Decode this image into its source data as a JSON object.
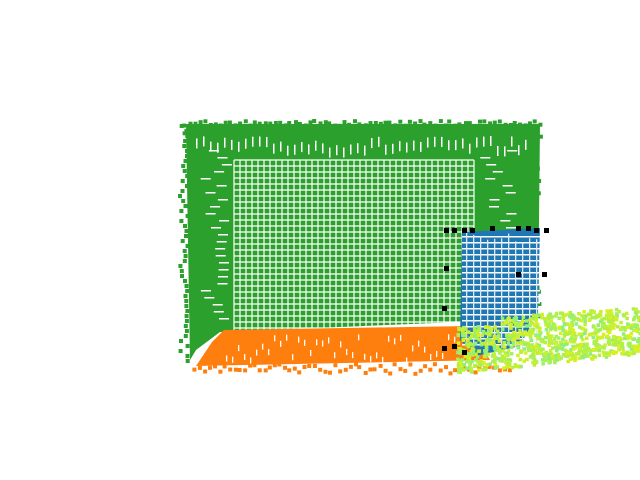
{
  "scene": {
    "kind": "point-cloud-render",
    "background_color": "#ffffff",
    "segments": [
      {
        "name": "walls",
        "color": "#2ca02c"
      },
      {
        "name": "floor",
        "color": "#ff7f0e"
      },
      {
        "name": "box-object",
        "color": "#1f77b4"
      },
      {
        "name": "foreground-cluster",
        "color": "#c8f030"
      },
      {
        "name": "keypoints",
        "color": "#000000"
      }
    ]
  }
}
